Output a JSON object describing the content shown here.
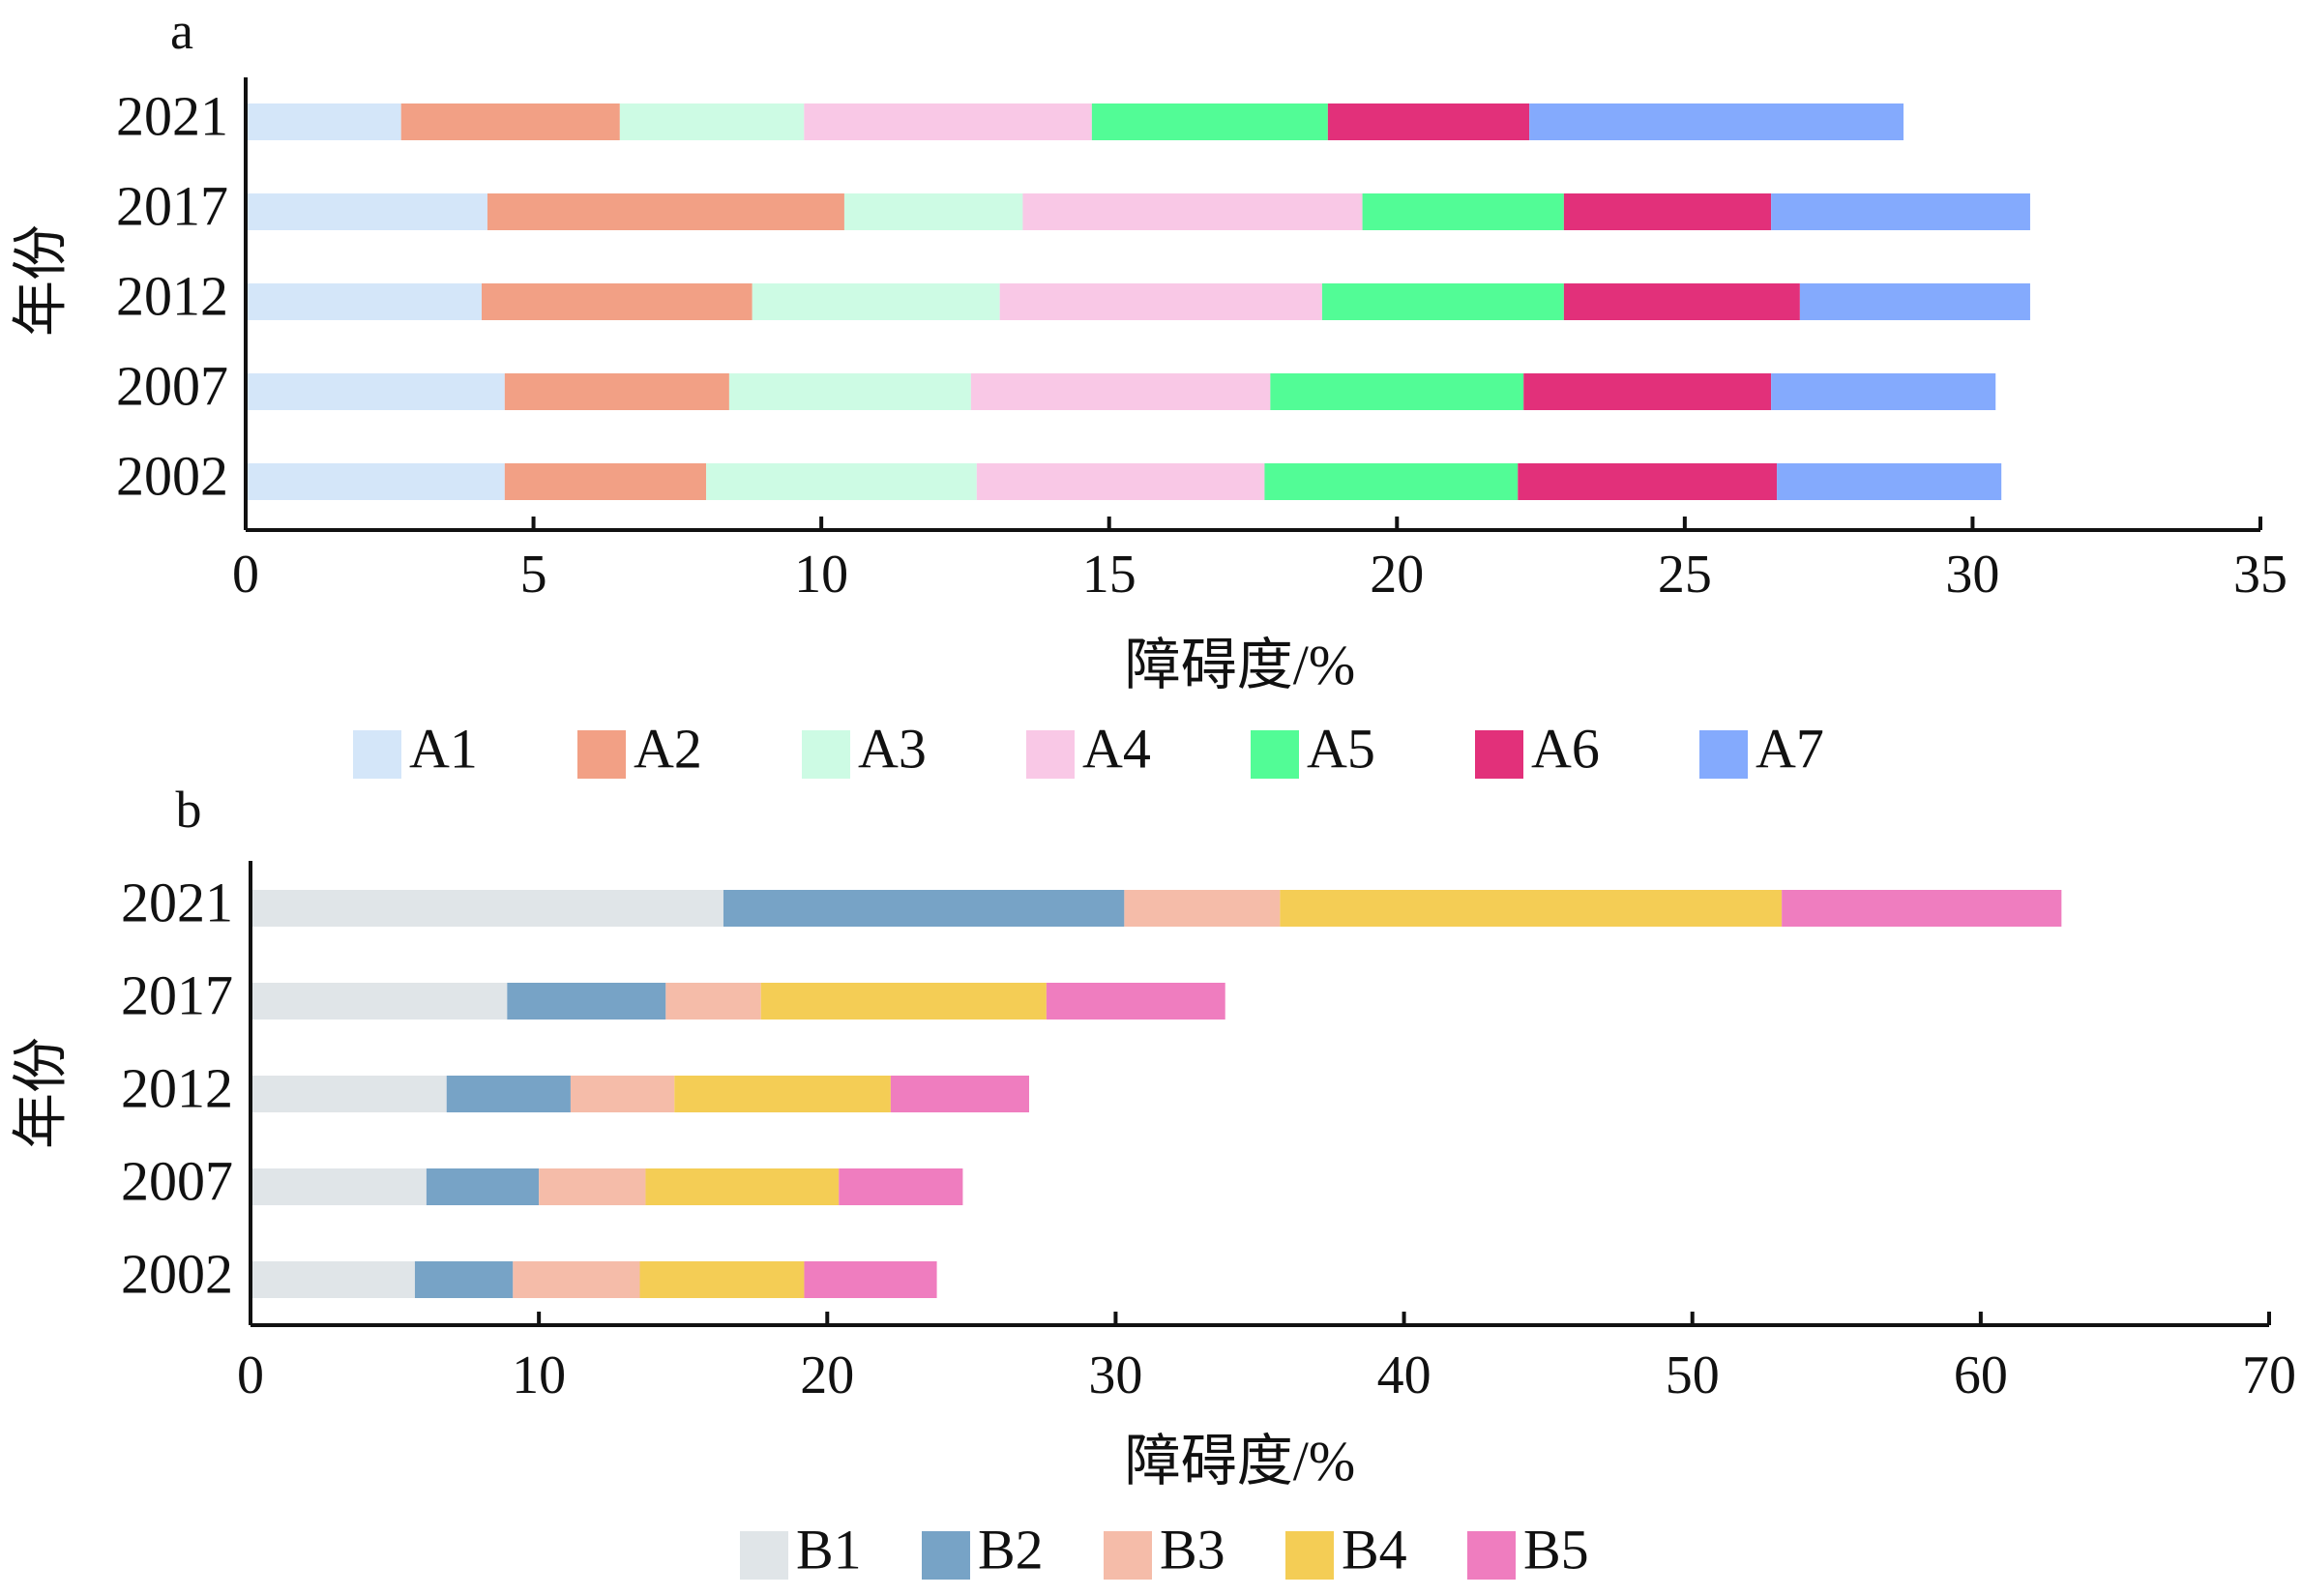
{
  "chart_data": [
    {
      "type": "bar",
      "orientation": "horizontal",
      "stacked": true,
      "panel_label": "a",
      "categories": [
        "2021",
        "2017",
        "2012",
        "2007",
        "2002"
      ],
      "ylabel": "年份",
      "xlabel": "障碍度/%",
      "xlim": [
        0,
        35
      ],
      "xticks": [
        "0",
        "5",
        "10",
        "15",
        "20",
        "25",
        "30",
        "35"
      ],
      "grid": false,
      "legend_position": "bottom",
      "series": [
        {
          "name": "A1",
          "color": "#d4e6f9",
          "values": [
            2.7,
            4.2,
            4.1,
            4.5,
            4.5
          ]
        },
        {
          "name": "A2",
          "color": "#f2a085",
          "values": [
            3.8,
            6.2,
            4.7,
            3.9,
            3.5
          ]
        },
        {
          "name": "A3",
          "color": "#cdfbe4",
          "values": [
            3.2,
            3.1,
            4.3,
            4.2,
            4.7
          ]
        },
        {
          "name": "A4",
          "color": "#f9c8e6",
          "values": [
            5.0,
            5.9,
            5.6,
            5.2,
            5.0
          ]
        },
        {
          "name": "A5",
          "color": "#52fc96",
          "values": [
            4.1,
            3.5,
            4.2,
            4.4,
            4.4
          ]
        },
        {
          "name": "A6",
          "color": "#e2307a",
          "values": [
            3.5,
            3.6,
            4.1,
            4.3,
            4.5
          ]
        },
        {
          "name": "A7",
          "color": "#84aafd",
          "values": [
            6.5,
            4.5,
            4.0,
            3.9,
            3.9
          ]
        }
      ]
    },
    {
      "type": "bar",
      "orientation": "horizontal",
      "stacked": true,
      "panel_label": "b",
      "categories": [
        "2021",
        "2017",
        "2012",
        "2007",
        "2002"
      ],
      "ylabel": "年份",
      "xlabel": "障碍度/%",
      "xlim": [
        0,
        70
      ],
      "xticks": [
        "0",
        "10",
        "20",
        "30",
        "40",
        "50",
        "60",
        "70"
      ],
      "grid": false,
      "legend_position": "bottom",
      "series": [
        {
          "name": "B1",
          "color": "#e0e5e8",
          "values": [
            16.4,
            8.9,
            6.8,
            6.1,
            5.7
          ]
        },
        {
          "name": "B2",
          "color": "#77a3c6",
          "values": [
            13.9,
            5.5,
            4.3,
            3.9,
            3.4
          ]
        },
        {
          "name": "B3",
          "color": "#f5bca9",
          "values": [
            5.4,
            3.3,
            3.6,
            3.7,
            4.4
          ]
        },
        {
          "name": "B4",
          "color": "#f4cd55",
          "values": [
            17.4,
            9.9,
            7.5,
            6.7,
            5.7
          ]
        },
        {
          "name": "B5",
          "color": "#ef7dbf",
          "values": [
            9.7,
            6.2,
            4.8,
            4.3,
            4.6
          ]
        }
      ]
    }
  ]
}
